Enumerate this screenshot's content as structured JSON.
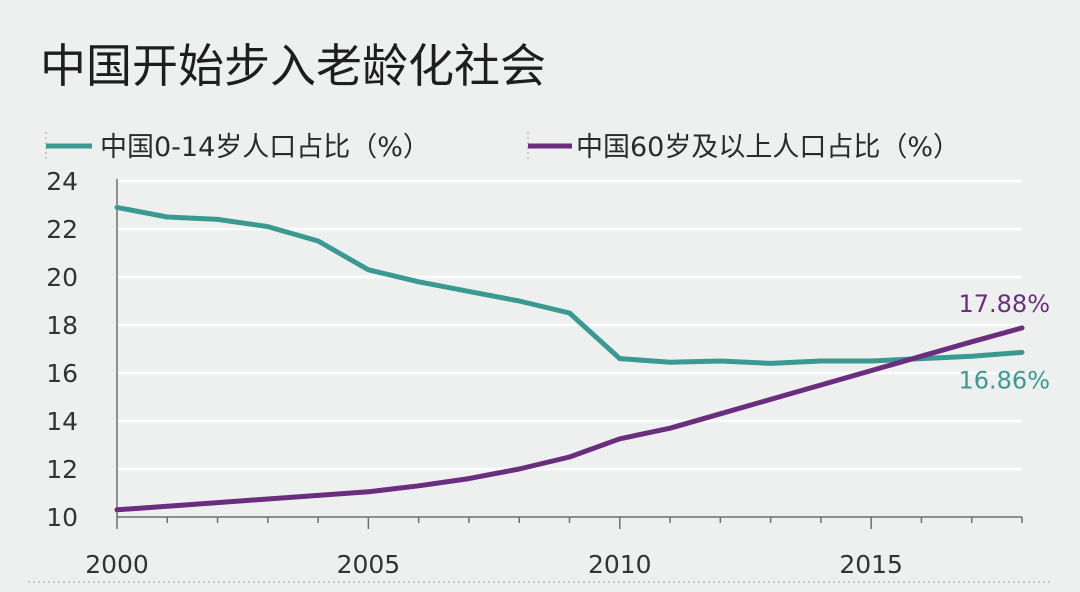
{
  "chart_data": {
    "type": "line",
    "title": "中国开始步入老龄化社会",
    "xlabel": "",
    "ylabel": "",
    "xlim": [
      2000,
      2018
    ],
    "ylim": [
      10,
      24
    ],
    "x_ticks": [
      2000,
      2005,
      2010,
      2015
    ],
    "y_ticks": [
      10,
      12,
      14,
      16,
      18,
      20,
      22,
      24
    ],
    "grid": true,
    "legend_position": "top",
    "x": [
      2000,
      2001,
      2002,
      2003,
      2004,
      2005,
      2006,
      2007,
      2008,
      2009,
      2010,
      2011,
      2012,
      2013,
      2014,
      2015,
      2016,
      2017,
      2018
    ],
    "series": [
      {
        "name": "中国0-14岁人口占比（%）",
        "color": "#3a9a92",
        "values": [
          22.9,
          22.5,
          22.4,
          22.1,
          21.5,
          20.3,
          19.8,
          19.4,
          19.0,
          18.5,
          16.6,
          16.45,
          16.5,
          16.4,
          16.5,
          16.5,
          16.6,
          16.7,
          16.86
        ],
        "end_label": "16.86%"
      },
      {
        "name": "中国60岁及以上人口占比（%）",
        "color": "#6b2d7e",
        "values": [
          10.3,
          10.45,
          10.6,
          10.75,
          10.9,
          11.05,
          11.3,
          11.6,
          12.0,
          12.5,
          13.26,
          13.7,
          14.3,
          14.9,
          15.5,
          16.1,
          16.7,
          17.3,
          17.88
        ],
        "end_label": "17.88%"
      }
    ]
  }
}
